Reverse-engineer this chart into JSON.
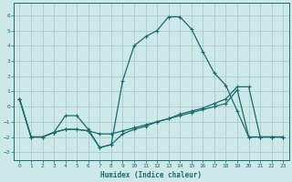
{
  "background_color": "#cce8e8",
  "grid_color": "#aacccc",
  "line_color": "#1a6b6b",
  "xlabel": "Humidex (Indice chaleur)",
  "xlim": [
    -0.5,
    23.5
  ],
  "ylim": [
    -3.5,
    6.8
  ],
  "yticks": [
    -3,
    -2,
    -1,
    0,
    1,
    2,
    3,
    4,
    5,
    6
  ],
  "xticks": [
    0,
    1,
    2,
    3,
    4,
    5,
    6,
    7,
    8,
    9,
    10,
    11,
    12,
    13,
    14,
    15,
    16,
    17,
    18,
    19,
    20,
    21,
    22,
    23
  ],
  "line1_x": [
    0,
    1,
    2,
    3,
    4,
    5,
    6,
    7,
    8,
    9,
    10,
    11,
    12,
    13,
    14,
    15,
    16,
    17,
    18,
    19,
    20,
    21,
    22,
    23
  ],
  "line1_y": [
    0.5,
    -2.0,
    -2.0,
    -1.7,
    -0.6,
    -0.6,
    -1.5,
    -2.7,
    -2.5,
    1.7,
    4.0,
    4.6,
    5.0,
    5.9,
    5.9,
    5.1,
    3.6,
    2.2,
    1.4,
    -0.3,
    -2.0,
    -2.0,
    -2.0,
    -2.0
  ],
  "line2_x": [
    0,
    1,
    2,
    3,
    4,
    5,
    6,
    7,
    8,
    9,
    10,
    11,
    12,
    13,
    14,
    15,
    16,
    17,
    18,
    19,
    20,
    21,
    22,
    23
  ],
  "line2_y": [
    0.5,
    -2.0,
    -2.0,
    -1.7,
    -1.5,
    -1.5,
    -1.6,
    -2.7,
    -2.5,
    -1.8,
    -1.5,
    -1.3,
    -1.0,
    -0.8,
    -0.5,
    -0.3,
    -0.1,
    0.2,
    0.5,
    1.3,
    1.3,
    -2.0,
    -2.0,
    -2.0
  ],
  "line3_x": [
    0,
    1,
    2,
    3,
    4,
    5,
    6,
    7,
    8,
    9,
    10,
    11,
    12,
    13,
    14,
    15,
    16,
    17,
    18,
    19,
    20,
    21,
    22,
    23
  ],
  "line3_y": [
    0.5,
    -2.0,
    -2.0,
    -1.7,
    -1.5,
    -1.5,
    -1.6,
    -1.8,
    -1.8,
    -1.6,
    -1.4,
    -1.2,
    -1.0,
    -0.8,
    -0.6,
    -0.4,
    -0.2,
    0.0,
    0.2,
    1.1,
    -2.0,
    -2.0,
    -2.0,
    -2.0
  ]
}
